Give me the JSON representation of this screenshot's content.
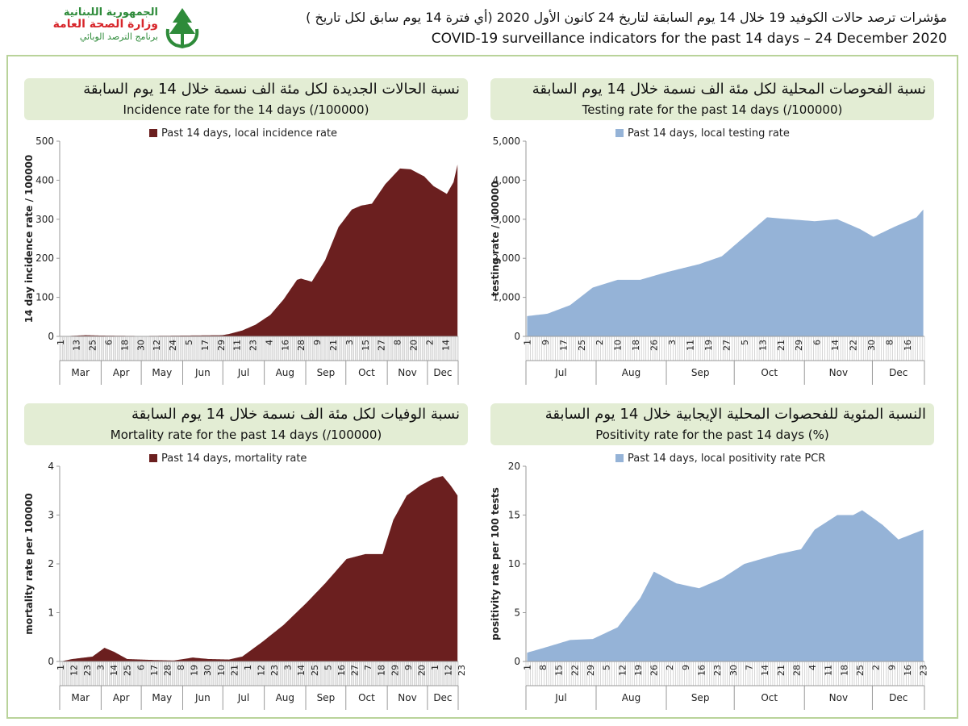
{
  "logo": {
    "line1": "الجمهورية اللبنانية",
    "line2": "وزارة الصحة العامة",
    "line3": "برنامج الترصد الوبائي",
    "icon": "cedar-hands-icon",
    "brand_color": "#2e8b3a",
    "accent_color": "#d7262b"
  },
  "header": {
    "title_ar": "مؤشرات ترصد حالات الكوفيد 19 خلال  14 يوم السابقة لتاريخ 24 كانون الأول 2020 (أي فترة  14 يوم سابق لكل تاريخ )",
    "title_en": "COVID-19 surveillance indicators for the past 14 days – 24 December 2020"
  },
  "colors": {
    "dark_red": "#6b1f1f",
    "light_blue": "#95b3d7",
    "panel_bg": "#e3edd4",
    "frame": "#b9d39a"
  },
  "panels": [
    {
      "title_ar": "نسبة الحالات الجديدة لكل مئة الف نسمة خلال 14 يوم السابقة",
      "title_en": "Incidence rate for the 14 days  (/100000)",
      "chart_data": {
        "type": "area",
        "legend": "Past 14 days, local incidence rate",
        "legend_position": "top-center",
        "ylabel": "14 day incidence rate / 100000",
        "ylim": [
          0,
          500
        ],
        "yticks": [
          "0",
          "100",
          "200",
          "300",
          "400",
          "500"
        ],
        "color": "#6b1f1f",
        "date_start": "2020-03-01",
        "date_end": "2020-12-23",
        "x": [
          "2020-03-01",
          "2020-03-20",
          "2020-04-01",
          "2020-05-01",
          "2020-06-01",
          "2020-06-30",
          "2020-07-05",
          "2020-07-15",
          "2020-07-25",
          "2020-08-05",
          "2020-08-15",
          "2020-08-25",
          "2020-08-28",
          "2020-09-05",
          "2020-09-15",
          "2020-09-25",
          "2020-10-05",
          "2020-10-12",
          "2020-10-20",
          "2020-10-30",
          "2020-11-10",
          "2020-11-18",
          "2020-11-28",
          "2020-12-05",
          "2020-12-15",
          "2020-12-20",
          "2020-12-23"
        ],
        "values": [
          0,
          3,
          2,
          1,
          2,
          3,
          6,
          15,
          30,
          55,
          95,
          145,
          148,
          140,
          195,
          280,
          325,
          335,
          340,
          390,
          430,
          428,
          410,
          385,
          365,
          395,
          440
        ],
        "xticks": [
          "1",
          "13",
          "25",
          "6",
          "18",
          "30",
          "12",
          "24",
          "5",
          "17",
          "29",
          "11",
          "23",
          "4",
          "16",
          "28",
          "9",
          "21",
          "3",
          "15",
          "27",
          "8",
          "20",
          "2",
          "14"
        ],
        "months": [
          "Mar",
          "Apr",
          "May",
          "Jun",
          "Jul",
          "Aug",
          "Sep",
          "Oct",
          "Nov",
          "Dec"
        ]
      }
    },
    {
      "title_ar": "نسبة الفحوصات المحلية لكل مئة الف نسمة خلال 14 يوم السابقة",
      "title_en": "Testing rate for the past 14 days (/100000)",
      "chart_data": {
        "type": "area",
        "legend": "Past 14 days, local testing rate",
        "legend_position": "top-center",
        "ylabel": "testing rate / 100000",
        "ylim": [
          0,
          5000
        ],
        "yticks": [
          "0",
          "1,000",
          "2,000",
          "3,000",
          "4,000",
          "5,000"
        ],
        "color": "#95b3d7",
        "date_start": "2020-07-01",
        "date_end": "2020-12-23",
        "x": [
          "2020-07-01",
          "2020-07-10",
          "2020-07-20",
          "2020-07-30",
          "2020-08-10",
          "2020-08-20",
          "2020-09-01",
          "2020-09-15",
          "2020-09-25",
          "2020-10-05",
          "2020-10-15",
          "2020-10-25",
          "2020-11-05",
          "2020-11-15",
          "2020-11-25",
          "2020-12-01",
          "2020-12-10",
          "2020-12-20",
          "2020-12-23"
        ],
        "values": [
          520,
          580,
          800,
          1250,
          1450,
          1450,
          1650,
          1850,
          2050,
          2550,
          3050,
          3000,
          2950,
          3000,
          2750,
          2550,
          2800,
          3050,
          3250
        ],
        "xticks": [
          "1",
          "9",
          "17",
          "25",
          "2",
          "10",
          "18",
          "26",
          "3",
          "11",
          "19",
          "27",
          "5",
          "13",
          "21",
          "29",
          "6",
          "14",
          "22",
          "30",
          "8",
          "16"
        ],
        "months": [
          "Jul",
          "Aug",
          "Sep",
          "Oct",
          "Nov",
          "Dec"
        ]
      }
    },
    {
      "title_ar": "نسبة الوفيات لكل مئة الف نسمة خلال 14 يوم السابقة",
      "title_en": "Mortality rate for the past 14 days (/100000)",
      "chart_data": {
        "type": "area",
        "legend": "Past 14 days, mortality rate",
        "legend_position": "top-center",
        "ylabel": "mortality rate per 100000",
        "ylim": [
          0,
          4
        ],
        "yticks": [
          "0",
          "1",
          "2",
          "3",
          "4"
        ],
        "color": "#6b1f1f",
        "date_start": "2020-03-01",
        "date_end": "2020-12-23",
        "x": [
          "2020-03-01",
          "2020-03-10",
          "2020-03-25",
          "2020-04-03",
          "2020-04-10",
          "2020-04-20",
          "2020-05-10",
          "2020-05-25",
          "2020-06-08",
          "2020-06-20",
          "2020-07-05",
          "2020-07-15",
          "2020-07-30",
          "2020-08-15",
          "2020-09-01",
          "2020-09-15",
          "2020-10-01",
          "2020-10-15",
          "2020-10-28",
          "2020-11-05",
          "2020-11-15",
          "2020-11-25",
          "2020-12-05",
          "2020-12-12",
          "2020-12-18",
          "2020-12-23"
        ],
        "values": [
          0,
          0.05,
          0.1,
          0.28,
          0.2,
          0.05,
          0.03,
          0.02,
          0.08,
          0.05,
          0.04,
          0.1,
          0.4,
          0.75,
          1.2,
          1.6,
          2.1,
          2.2,
          2.2,
          2.9,
          3.4,
          3.6,
          3.75,
          3.8,
          3.6,
          3.4
        ],
        "xticks": [
          "1",
          "12",
          "23",
          "3",
          "14",
          "25",
          "6",
          "17",
          "28",
          "8",
          "19",
          "30",
          "10",
          "21",
          "1",
          "12",
          "23",
          "3",
          "14",
          "25",
          "5",
          "16",
          "27",
          "7",
          "18",
          "29",
          "9",
          "20",
          "1",
          "12",
          "23"
        ],
        "months": [
          "Mar",
          "Apr",
          "May",
          "Jun",
          "Jul",
          "Aug",
          "Sep",
          "Oct",
          "Nov",
          "Dec"
        ]
      }
    },
    {
      "title_ar": "النسبة المئوية للفحصوات المحلية الإيجابية خلال 14 يوم السابقة",
      "title_en": "Positivity rate for the past 14 days (%)",
      "chart_data": {
        "type": "area",
        "legend": "Past 14 days, local positivity rate PCR",
        "legend_position": "top-center",
        "ylabel": "positivity rate per 100 tests",
        "ylim": [
          0,
          20
        ],
        "yticks": [
          "0",
          "5",
          "10",
          "15",
          "20"
        ],
        "color": "#95b3d7",
        "date_start": "2020-07-01",
        "date_end": "2020-12-23",
        "x": [
          "2020-07-01",
          "2020-07-10",
          "2020-07-20",
          "2020-07-30",
          "2020-08-10",
          "2020-08-20",
          "2020-08-26",
          "2020-09-05",
          "2020-09-15",
          "2020-09-25",
          "2020-10-05",
          "2020-10-20",
          "2020-10-30",
          "2020-11-05",
          "2020-11-15",
          "2020-11-22",
          "2020-11-26",
          "2020-12-05",
          "2020-12-12",
          "2020-12-23"
        ],
        "values": [
          0.9,
          1.5,
          2.2,
          2.3,
          3.5,
          6.5,
          9.2,
          8.0,
          7.5,
          8.5,
          10.0,
          11.0,
          11.5,
          13.5,
          15.0,
          15.0,
          15.5,
          14.0,
          12.5,
          13.5
        ],
        "xticks": [
          "1",
          "8",
          "15",
          "22",
          "29",
          "5",
          "12",
          "19",
          "26",
          "2",
          "9",
          "16",
          "23",
          "30",
          "7",
          "14",
          "21",
          "28",
          "4",
          "11",
          "18",
          "25",
          "2",
          "9",
          "16",
          "23"
        ],
        "months": [
          "Jul",
          "Aug",
          "Sep",
          "Oct",
          "Nov",
          "Dec"
        ]
      }
    }
  ]
}
